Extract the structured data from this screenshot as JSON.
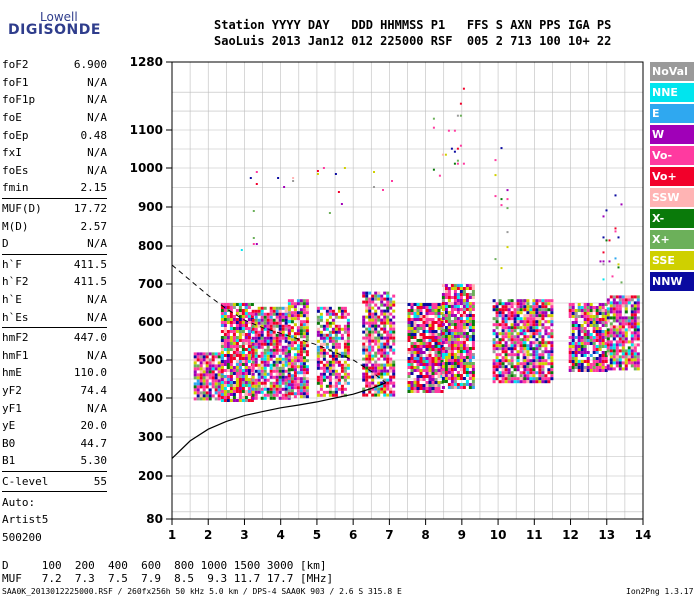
{
  "logo": {
    "line1": "Lowell",
    "line2": "DIGISONDE"
  },
  "header": {
    "row1": "Station YYYY DAY   DDD HHMMSS P1   FFS S AXN PPS IGA PS",
    "row2": "SaoLuis 2013 Jan12 012 225000 RSF  005 2 713 100 10+ 22"
  },
  "params": [
    {
      "label": "foF2",
      "value": "6.900"
    },
    {
      "label": "foF1",
      "value": "N/A"
    },
    {
      "label": "foF1p",
      "value": "N/A"
    },
    {
      "label": "foE",
      "value": "N/A"
    },
    {
      "label": "foEp",
      "value": "0.48"
    },
    {
      "label": "fxI",
      "value": "N/A"
    },
    {
      "label": "foEs",
      "value": "N/A"
    },
    {
      "label": "fmin",
      "value": "2.15",
      "sep": true
    },
    {
      "label": "MUF(D)",
      "value": "17.72"
    },
    {
      "label": "M(D)",
      "value": "2.57"
    },
    {
      "label": "D",
      "value": "N/A",
      "sep": true
    },
    {
      "label": "h`F",
      "value": "411.5"
    },
    {
      "label": "h`F2",
      "value": "411.5"
    },
    {
      "label": "h`E",
      "value": "N/A"
    },
    {
      "label": "h`Es",
      "value": "N/A",
      "sep": true
    },
    {
      "label": "hmF2",
      "value": "447.0"
    },
    {
      "label": "hmF1",
      "value": "N/A"
    },
    {
      "label": "hmE",
      "value": "110.0"
    },
    {
      "label": "yF2",
      "value": "74.4"
    },
    {
      "label": "yF1",
      "value": "N/A"
    },
    {
      "label": "yE",
      "value": "20.0"
    },
    {
      "label": "B0",
      "value": "44.7"
    },
    {
      "label": "B1",
      "value": "5.30",
      "sep": true
    },
    {
      "label": "C-level",
      "value": "55",
      "sep": true
    },
    {
      "label": "Auto:",
      "value": ""
    },
    {
      "label": "Artist5",
      "value": ""
    },
    {
      "label": "500200",
      "value": ""
    }
  ],
  "legend": [
    {
      "label": "NoVal",
      "color": "#9a9a9a"
    },
    {
      "label": "NNE",
      "color": "#00e5ee"
    },
    {
      "label": "E",
      "color": "#2fa8f0"
    },
    {
      "label": "W",
      "color": "#a000b8"
    },
    {
      "label": "Vo-",
      "color": "#ff3aa0"
    },
    {
      "label": "Vo+",
      "color": "#f2002a"
    },
    {
      "label": "SSW",
      "color": "#ffb4b4"
    },
    {
      "label": "X-",
      "color": "#0a7a0a"
    },
    {
      "label": "X+",
      "color": "#6cb05a"
    },
    {
      "label": "SSE",
      "color": "#cfd000"
    },
    {
      "label": "NNW",
      "color": "#0a0aa0"
    }
  ],
  "bottom": {
    "row1": "D     100  200  400  600  800 1000 1500 3000 [km]",
    "row2": "MUF   7.2  7.3  7.5  7.9  8.5  9.3 11.7 17.7 [MHz]"
  },
  "footer": "SAA0K_2013012225000.RSF / 260fx256h 50 kHz 5.0 km / DPS-4 SAA0K 903 / 2.6 S 315.8 E",
  "version": "Ion2Png 1.3.17",
  "chart_data": {
    "type": "scatter",
    "x_ticks": [
      "1",
      "2",
      "3",
      "4",
      "5",
      "6",
      "7",
      "8",
      "9",
      "10",
      "11",
      "12",
      "13",
      "14"
    ],
    "y_ticks": [
      "1280",
      "1100",
      "1000",
      "900",
      "800",
      "700",
      "600",
      "500",
      "400",
      "300",
      "200",
      "80"
    ],
    "xlim": [
      1,
      14
    ],
    "y_scale": "nonlinear (ionogram virtual height)",
    "ylim": [
      80,
      1280
    ],
    "grid": true,
    "y_tick_values": [
      1280,
      1100,
      1000,
      900,
      800,
      700,
      600,
      500,
      400,
      300,
      200,
      80
    ],
    "clusters": [
      {
        "x": [
          1.6,
          2.35
        ],
        "y": [
          395,
          520
        ],
        "density": 0.85
      },
      {
        "x": [
          2.35,
          3.2
        ],
        "y": [
          395,
          650
        ],
        "density": 0.85
      },
      {
        "x": [
          3.2,
          4.2
        ],
        "y": [
          400,
          640
        ],
        "density": 0.85
      },
      {
        "x": [
          4.2,
          4.75
        ],
        "y": [
          400,
          660
        ],
        "density": 0.8
      },
      {
        "x": [
          5.0,
          5.9
        ],
        "y": [
          405,
          640
        ],
        "density": 0.75
      },
      {
        "x": [
          6.25,
          7.1
        ],
        "y": [
          410,
          680
        ],
        "density": 0.75
      },
      {
        "x": [
          7.5,
          8.45
        ],
        "y": [
          420,
          650
        ],
        "density": 0.85
      },
      {
        "x": [
          8.45,
          9.35
        ],
        "y": [
          430,
          700
        ],
        "density": 0.85
      },
      {
        "x": [
          9.85,
          10.7
        ],
        "y": [
          440,
          660
        ],
        "density": 0.8
      },
      {
        "x": [
          10.7,
          11.45
        ],
        "y": [
          440,
          660
        ],
        "density": 0.8
      },
      {
        "x": [
          11.95,
          13.0
        ],
        "y": [
          470,
          650
        ],
        "density": 0.8
      },
      {
        "x": [
          13.0,
          13.85
        ],
        "y": [
          480,
          670
        ],
        "density": 0.8
      }
    ],
    "sparse": [
      {
        "x": [
          2.9,
          3.35
        ],
        "y": [
          780,
          1000
        ]
      },
      {
        "x": [
          3.9,
          4.6
        ],
        "y": [
          870,
          1000
        ]
      },
      {
        "x": [
          5.0,
          5.9
        ],
        "y": [
          880,
          1050
        ]
      },
      {
        "x": [
          6.3,
          7.1
        ],
        "y": [
          940,
          1000
        ]
      },
      {
        "x": [
          8.2,
          9.1
        ],
        "y": [
          960,
          1220
        ]
      },
      {
        "x": [
          9.9,
          10.3
        ],
        "y": [
          700,
          1150
        ]
      },
      {
        "x": [
          12.8,
          13.4
        ],
        "y": [
          700,
          940
        ]
      }
    ],
    "profile_curve": {
      "x": [
        1.0,
        1.5,
        2.0,
        2.5,
        3.0,
        3.5,
        4.0,
        4.5,
        5.0,
        5.5,
        6.0,
        6.5,
        6.9
      ],
      "y": [
        245,
        290,
        320,
        340,
        355,
        365,
        375,
        382,
        390,
        400,
        410,
        425,
        440
      ]
    },
    "dashed_curve": {
      "x": [
        1.0,
        1.5,
        2.0,
        2.5,
        3.0,
        3.5,
        4.0,
        4.5,
        5.0,
        5.5,
        6.0,
        6.5,
        6.9
      ],
      "y": [
        750,
        710,
        670,
        635,
        605,
        585,
        570,
        555,
        540,
        520,
        500,
        470,
        440
      ]
    }
  }
}
